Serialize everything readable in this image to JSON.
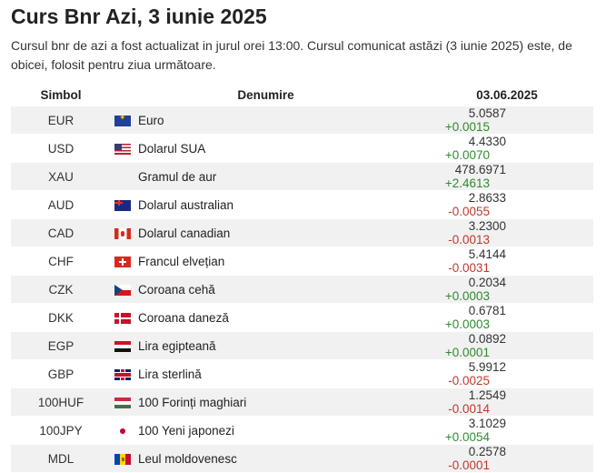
{
  "page": {
    "title": "Curs Bnr Azi, 3 iunie 2025",
    "description": "Cursul bnr de azi a fost actualizat in jurul orei 13:00. Cursul comunicat astăzi (3 iunie 2025) este, de obicei, folosit pentru ziua următoare."
  },
  "table": {
    "headers": {
      "symbol": "Simbol",
      "name": "Denumire",
      "date": "03.06.2025"
    },
    "rows": [
      {
        "symbol": "EUR",
        "flag": "eu-flag-icon",
        "name": "Euro",
        "rate": "5.0587",
        "change": "+0.0015",
        "trend": "up"
      },
      {
        "symbol": "USD",
        "flag": "us-flag-icon",
        "name": "Dolarul SUA",
        "rate": "4.4330",
        "change": "+0.0070",
        "trend": "up"
      },
      {
        "symbol": "XAU",
        "flag": "",
        "name": "Gramul de aur",
        "rate": "478.6971",
        "change": "+2.4613",
        "trend": "up"
      },
      {
        "symbol": "AUD",
        "flag": "au-flag-icon",
        "name": "Dolarul australian",
        "rate": "2.8633",
        "change": "-0.0055",
        "trend": "down"
      },
      {
        "symbol": "CAD",
        "flag": "ca-flag-icon",
        "name": "Dolarul canadian",
        "rate": "3.2300",
        "change": "-0.0013",
        "trend": "down"
      },
      {
        "symbol": "CHF",
        "flag": "ch-flag-icon",
        "name": "Francul elvețian",
        "rate": "5.4144",
        "change": "-0.0031",
        "trend": "down"
      },
      {
        "symbol": "CZK",
        "flag": "cz-flag-icon",
        "name": "Coroana cehă",
        "rate": "0.2034",
        "change": "+0.0003",
        "trend": "up"
      },
      {
        "symbol": "DKK",
        "flag": "dk-flag-icon",
        "name": "Coroana daneză",
        "rate": "0.6781",
        "change": "+0.0003",
        "trend": "up"
      },
      {
        "symbol": "EGP",
        "flag": "eg-flag-icon",
        "name": "Lira egipteană",
        "rate": "0.0892",
        "change": "+0.0001",
        "trend": "up"
      },
      {
        "symbol": "GBP",
        "flag": "gb-flag-icon",
        "name": "Lira sterlină",
        "rate": "5.9912",
        "change": "-0.0025",
        "trend": "down"
      },
      {
        "symbol": "100HUF",
        "flag": "hu-flag-icon",
        "name": "100 Forinți maghiari",
        "rate": "1.2549",
        "change": "-0.0014",
        "trend": "down"
      },
      {
        "symbol": "100JPY",
        "flag": "jp-flag-icon",
        "name": "100 Yeni japonezi",
        "rate": "3.1029",
        "change": "+0.0054",
        "trend": "up"
      },
      {
        "symbol": "MDL",
        "flag": "md-flag-icon",
        "name": "Leul moldovenesc",
        "rate": "0.2578",
        "change": "-0.0001",
        "trend": "down"
      }
    ]
  },
  "colors": {
    "positive": "#2e8b2e",
    "negative": "#c0392b",
    "row_stripe": "#f1f1f1"
  }
}
